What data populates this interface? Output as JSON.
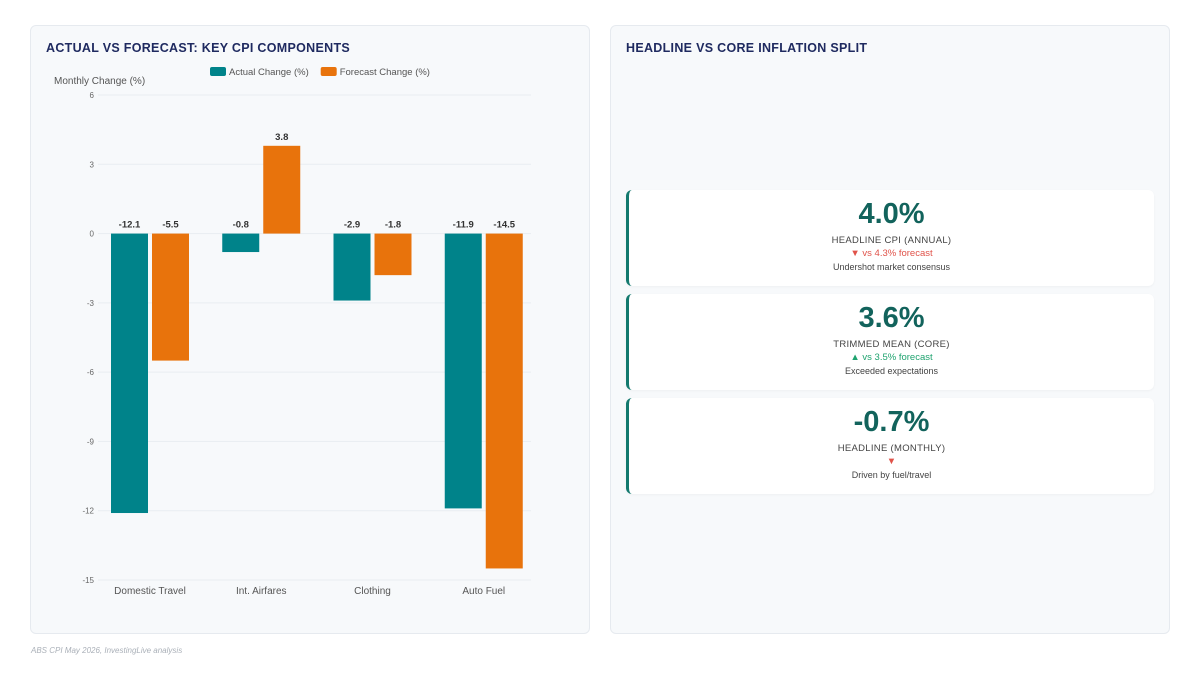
{
  "left_panel": {
    "title": "ACTUAL VS FORECAST: KEY CPI COMPONENTS"
  },
  "right_panel": {
    "title": "HEADLINE VS CORE INFLATION SPLIT",
    "kpis": [
      {
        "value": "4.0%",
        "label": "HEADLINE CPI (ANNUAL)",
        "compare": "▼ vs 4.3% forecast",
        "direction": "down",
        "note": "Undershot market consensus"
      },
      {
        "value": "3.6%",
        "label": "TRIMMED MEAN (CORE)",
        "compare": "▲ vs 3.5% forecast",
        "direction": "up",
        "note": "Exceeded expectations"
      },
      {
        "value": "-0.7%",
        "label": "HEADLINE (MONTHLY)",
        "compare": "▼",
        "direction": "down",
        "note": "Driven by fuel/travel"
      }
    ]
  },
  "footer": {
    "source": "ABS CPI May 2026, InvestingLive analysis"
  },
  "chart_data": {
    "type": "bar",
    "title": "ACTUAL VS FORECAST: KEY CPI COMPONENTS",
    "ylabel": "Monthly Change (%)",
    "xlabel": "",
    "categories": [
      "Domestic Travel",
      "Int. Airfares",
      "Clothing",
      "Auto Fuel"
    ],
    "series": [
      {
        "name": "Actual Change (%)",
        "color": "#00838a",
        "values": [
          -12.1,
          -0.8,
          -2.9,
          -11.9
        ]
      },
      {
        "name": "Forecast Change (%)",
        "color": "#e8730c",
        "values": [
          -5.5,
          3.8,
          -1.8,
          -14.5
        ]
      }
    ],
    "ylim": [
      -15,
      6
    ],
    "yticks": [
      6,
      3,
      0,
      -3,
      -6,
      -9,
      -12,
      -15
    ],
    "grid": true,
    "legend": "top-center"
  }
}
